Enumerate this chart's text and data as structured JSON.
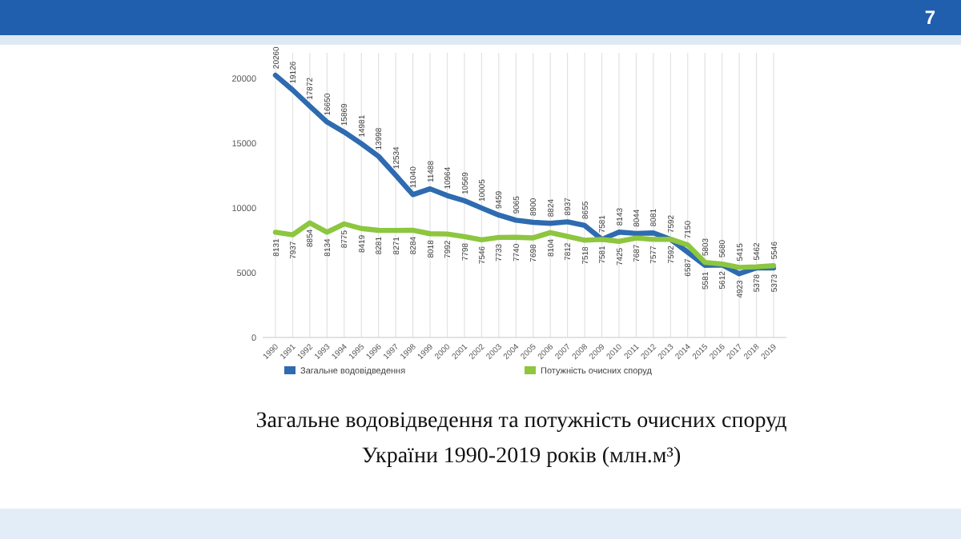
{
  "chart_data": {
    "type": "line",
    "title": "Загальне водовідведення та потужність очисних споруд\nУкраїни 1990-2019 років (млн.м³)",
    "categories": [
      "1990",
      "1991",
      "1992",
      "1993",
      "1994",
      "1995",
      "1996",
      "1997",
      "1998",
      "1999",
      "2000",
      "2001",
      "2002",
      "2003",
      "2004",
      "2005",
      "2006",
      "2007",
      "2008",
      "2009",
      "2010",
      "2011",
      "2012",
      "2013",
      "2014",
      "2015",
      "2016",
      "2017",
      "2018",
      "2019"
    ],
    "series": [
      {
        "name": "Загальне водовідведення",
        "color": "#2e6bb0",
        "values": [
          20260,
          19126,
          17872,
          16650,
          15869,
          14981,
          13998,
          12534,
          11040,
          11488,
          10964,
          10569,
          10005,
          9459,
          9065,
          8900,
          8824,
          8937,
          8655,
          7581,
          8143,
          8044,
          8081,
          7592,
          6587,
          5581,
          5612,
          4923,
          5378,
          5373
        ]
      },
      {
        "name": "Потужність очисних споруд",
        "color": "#8dc63f",
        "values": [
          8131,
          7937,
          8854,
          8134,
          8775,
          8419,
          8281,
          8271,
          8284,
          8018,
          7992,
          7798,
          7546,
          7733,
          7740,
          7698,
          8104,
          7812,
          7518,
          7581,
          7425,
          7687,
          7577,
          7592,
          7150,
          5803,
          5680,
          5415,
          5462,
          5546
        ]
      }
    ],
    "ylim": [
      0,
      22000
    ],
    "yticks": [
      0,
      5000,
      10000,
      15000,
      20000
    ],
    "grid": "x",
    "legend": "bottom",
    "data_labels": true,
    "marker": "none",
    "line_style": "solid",
    "annotations": [
      "7"
    ]
  }
}
